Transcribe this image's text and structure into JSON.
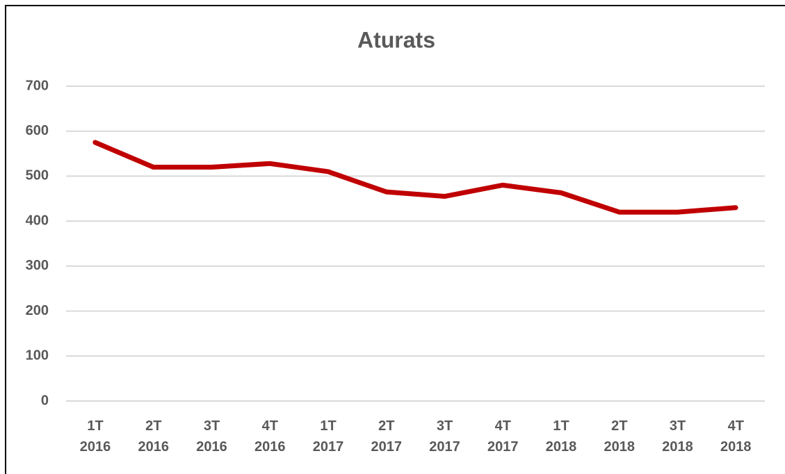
{
  "chart_data": {
    "type": "line",
    "title": "Aturats",
    "categories": [
      "1T\n2016",
      "2T\n2016",
      "3T\n2016",
      "4T\n2016",
      "1T\n2017",
      "2T\n2017",
      "3T\n2017",
      "4T\n2017",
      "1T\n2018",
      "2T\n2018",
      "3T\n2018",
      "4T\n2018"
    ],
    "values": [
      575,
      520,
      520,
      528,
      510,
      465,
      455,
      480,
      463,
      420,
      420,
      430
    ],
    "color": "#c00000",
    "ylim": [
      0,
      700
    ],
    "yticks": [
      0,
      100,
      200,
      300,
      400,
      500,
      600,
      700
    ],
    "grid": true
  }
}
